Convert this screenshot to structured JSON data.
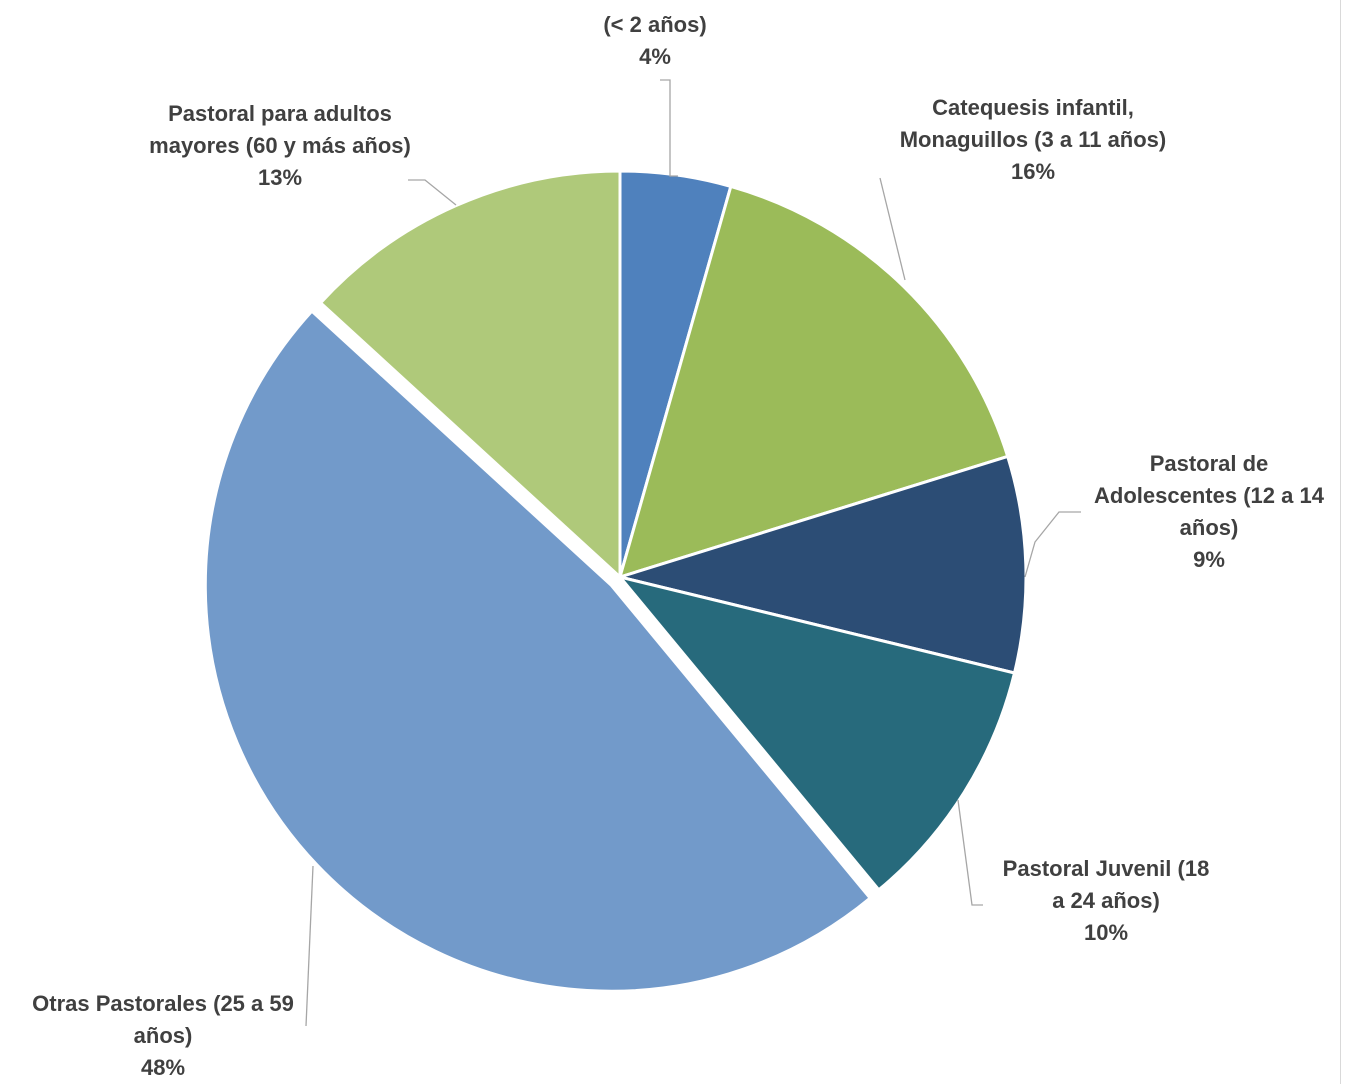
{
  "chart_data": {
    "type": "pie",
    "title": "",
    "start_angle_deg": 0,
    "direction": "clockwise",
    "slices": [
      {
        "label_lines": [
          "(< 2 años)"
        ],
        "percent_label": "4%",
        "value": 4.4,
        "color": "#4f81bd",
        "exploded": false
      },
      {
        "label_lines": [
          "Catequesis infantil,",
          "Monaguillos (3 a 11 años)"
        ],
        "percent_label": "16%",
        "value": 15.8,
        "color": "#9bbb59",
        "exploded": false
      },
      {
        "label_lines": [
          "Pastoral de",
          "Adolescentes (12 a 14",
          "años)"
        ],
        "percent_label": "9%",
        "value": 8.6,
        "color": "#2c4d75",
        "exploded": false
      },
      {
        "label_lines": [
          "Pastoral Juvenil (18",
          "a 24 años)"
        ],
        "percent_label": "10%",
        "value": 10.2,
        "color": "#276a7c",
        "exploded": false
      },
      {
        "label_lines": [
          "Otras Pastorales  (25 a 59",
          "años)"
        ],
        "percent_label": "48%",
        "value": 47.8,
        "color": "#729aca",
        "exploded": true
      },
      {
        "label_lines": [
          "Pastoral para adultos",
          "mayores (60 y más años)"
        ],
        "percent_label": "13%",
        "value": 13.2,
        "color": "#afc97a",
        "exploded": false
      }
    ]
  }
}
